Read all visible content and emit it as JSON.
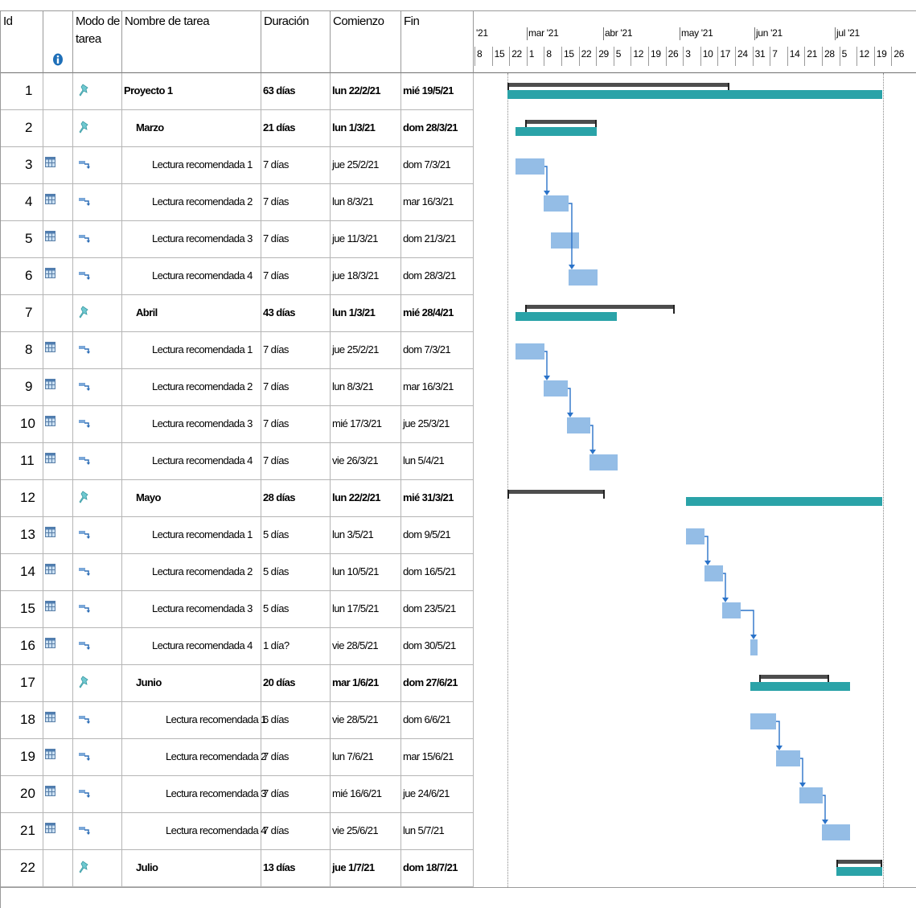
{
  "columns": {
    "id": "Id",
    "info_icon": "info-icon",
    "mode": "Modo de\ntarea",
    "name": "Nombre de tarea",
    "duration": "Duración",
    "start": "Comienzo",
    "finish": "Fin"
  },
  "timeline": {
    "months": [
      "'21",
      "mar '21",
      "abr '21",
      "may '21",
      "jun '21",
      "jul '21"
    ],
    "days": [
      "8",
      "15",
      "22",
      "1",
      "8",
      "15",
      "22",
      "29",
      "5",
      "12",
      "19",
      "26",
      "3",
      "10",
      "17",
      "24",
      "31",
      "7",
      "14",
      "21",
      "28",
      "5",
      "12",
      "19",
      "26"
    ]
  },
  "colors": {
    "summary_bar": "#2aa3a8",
    "baseline_bar": "#4d4d4d",
    "task_bar": "#94bde6",
    "link_line": "#2b73c9",
    "grid_line": "#b5b5b5"
  },
  "tasks": [
    {
      "id": "1",
      "indicator": "",
      "mode": "manual",
      "name": "Proyecto 1",
      "level": 0,
      "bold": true,
      "duration": "63 días",
      "start": "lun 22/2/21",
      "finish": "mié 19/5/21"
    },
    {
      "id": "2",
      "indicator": "",
      "mode": "manual",
      "name": "Marzo",
      "level": 1,
      "bold": true,
      "duration": "21 días",
      "start": "lun 1/3/21",
      "finish": "dom 28/3/21"
    },
    {
      "id": "3",
      "indicator": "calendar-icon",
      "mode": "auto",
      "name": "Lectura recomendada 1",
      "level": 2,
      "bold": false,
      "duration": "7 días",
      "start": "jue 25/2/21",
      "finish": "dom 7/3/21"
    },
    {
      "id": "4",
      "indicator": "calendar-icon",
      "mode": "auto",
      "name": "Lectura recomendada 2",
      "level": 2,
      "bold": false,
      "duration": "7 días",
      "start": "lun 8/3/21",
      "finish": "mar 16/3/21"
    },
    {
      "id": "5",
      "indicator": "calendar-icon",
      "mode": "auto",
      "name": "Lectura recomendada 3",
      "level": 2,
      "bold": false,
      "duration": "7 días",
      "start": "jue 11/3/21",
      "finish": "dom 21/3/21"
    },
    {
      "id": "6",
      "indicator": "calendar-icon",
      "mode": "auto",
      "name": "Lectura recomendada 4",
      "level": 2,
      "bold": false,
      "duration": "7 días",
      "start": "jue 18/3/21",
      "finish": "dom 28/3/21"
    },
    {
      "id": "7",
      "indicator": "",
      "mode": "manual",
      "name": "Abril",
      "level": 1,
      "bold": true,
      "duration": "43 días",
      "start": "lun 1/3/21",
      "finish": "mié 28/4/21"
    },
    {
      "id": "8",
      "indicator": "calendar-icon",
      "mode": "auto",
      "name": "Lectura recomendada 1",
      "level": 2,
      "bold": false,
      "duration": "7 días",
      "start": "jue 25/2/21",
      "finish": "dom 7/3/21"
    },
    {
      "id": "9",
      "indicator": "calendar-icon",
      "mode": "auto",
      "name": "Lectura recomendada 2",
      "level": 2,
      "bold": false,
      "duration": "7 días",
      "start": "lun 8/3/21",
      "finish": "mar 16/3/21"
    },
    {
      "id": "10",
      "indicator": "calendar-icon",
      "mode": "auto",
      "name": "Lectura recomendada 3",
      "level": 2,
      "bold": false,
      "duration": "7 días",
      "start": "mié 17/3/21",
      "finish": "jue 25/3/21"
    },
    {
      "id": "11",
      "indicator": "calendar-icon",
      "mode": "auto",
      "name": "Lectura recomendada 4",
      "level": 2,
      "bold": false,
      "duration": "7 días",
      "start": "vie 26/3/21",
      "finish": "lun 5/4/21"
    },
    {
      "id": "12",
      "indicator": "",
      "mode": "manual",
      "name": "Mayo",
      "level": 1,
      "bold": true,
      "duration": "28 días",
      "start": "lun 22/2/21",
      "finish": "mié 31/3/21"
    },
    {
      "id": "13",
      "indicator": "calendar-icon",
      "mode": "auto",
      "name": "Lectura recomendada 1",
      "level": 2,
      "bold": false,
      "duration": "5 días",
      "start": "lun 3/5/21",
      "finish": "dom 9/5/21"
    },
    {
      "id": "14",
      "indicator": "calendar-icon",
      "mode": "auto",
      "name": "Lectura recomendada 2",
      "level": 2,
      "bold": false,
      "duration": "5 días",
      "start": "lun 10/5/21",
      "finish": "dom 16/5/21"
    },
    {
      "id": "15",
      "indicator": "calendar-icon",
      "mode": "auto",
      "name": "Lectura recomendada 3",
      "level": 2,
      "bold": false,
      "duration": "5 días",
      "start": "lun 17/5/21",
      "finish": "dom 23/5/21"
    },
    {
      "id": "16",
      "indicator": "calendar-icon",
      "mode": "auto",
      "name": "Lectura recomendada 4",
      "level": 2,
      "bold": false,
      "duration": "1 día?",
      "start": "vie 28/5/21",
      "finish": "dom 30/5/21"
    },
    {
      "id": "17",
      "indicator": "",
      "mode": "manual",
      "name": "Junio",
      "level": 1,
      "bold": true,
      "duration": "20 días",
      "start": "mar 1/6/21",
      "finish": "dom 27/6/21"
    },
    {
      "id": "18",
      "indicator": "calendar-icon",
      "mode": "auto",
      "name": "Lectura recomendada 1",
      "level": 3,
      "bold": false,
      "duration": "6 días",
      "start": "vie 28/5/21",
      "finish": "dom 6/6/21"
    },
    {
      "id": "19",
      "indicator": "calendar-icon",
      "mode": "auto",
      "name": "Lectura recomendada 2",
      "level": 3,
      "bold": false,
      "duration": "7 días",
      "start": "lun 7/6/21",
      "finish": "mar 15/6/21"
    },
    {
      "id": "20",
      "indicator": "calendar-icon",
      "mode": "auto",
      "name": "Lectura recomendada 3",
      "level": 3,
      "bold": false,
      "duration": "7 días",
      "start": "mié 16/6/21",
      "finish": "jue 24/6/21"
    },
    {
      "id": "21",
      "indicator": "calendar-icon",
      "mode": "auto",
      "name": "Lectura recomendada 4",
      "level": 3,
      "bold": false,
      "duration": "7 días",
      "start": "vie 25/6/21",
      "finish": "lun 5/7/21"
    },
    {
      "id": "22",
      "indicator": "",
      "mode": "manual",
      "name": "Julio",
      "level": 1,
      "bold": true,
      "duration": "13 días",
      "start": "jue 1/7/21",
      "finish": "dom 18/7/21"
    }
  ]
}
